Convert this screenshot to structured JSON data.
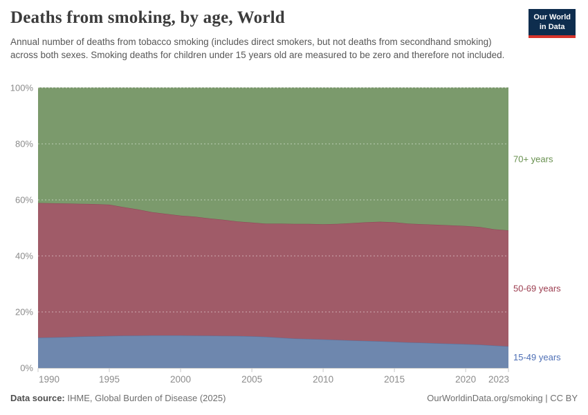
{
  "header": {
    "title": "Deaths from smoking, by age, World",
    "subtitle": "Annual number of deaths from tobacco smoking (includes direct smokers, but not deaths from secondhand smoking) across both sexes. Smoking deaths for children under 15 years old are measured to be zero and therefore not included.",
    "logo": {
      "line1": "Our World",
      "line2": "in Data",
      "bg": "#0e2d4e",
      "bar": "#d7342b"
    }
  },
  "footer": {
    "source_label": "Data source:",
    "source_text": " IHME, Global Burden of Disease (2025)",
    "credit": "OurWorldinData.org/smoking | CC BY"
  },
  "chart_data": {
    "type": "area",
    "stacked": true,
    "unit": "%",
    "title": "Deaths from smoking, by age, World",
    "x": [
      1990,
      1991,
      1992,
      1993,
      1994,
      1995,
      1996,
      1997,
      1998,
      1999,
      2000,
      2001,
      2002,
      2003,
      2004,
      2005,
      2006,
      2007,
      2008,
      2009,
      2010,
      2011,
      2012,
      2013,
      2014,
      2015,
      2016,
      2017,
      2018,
      2019,
      2020,
      2021,
      2022,
      2023
    ],
    "series": [
      {
        "name": "15-49 years",
        "fill": "#6e87ae",
        "stroke": "#54719f",
        "label_color": "#4e6fb5",
        "values": [
          10.8,
          10.9,
          11.0,
          11.2,
          11.3,
          11.4,
          11.5,
          11.55,
          11.6,
          11.6,
          11.6,
          11.55,
          11.5,
          11.45,
          11.4,
          11.3,
          11.1,
          10.8,
          10.5,
          10.35,
          10.2,
          10.0,
          9.8,
          9.65,
          9.5,
          9.3,
          9.1,
          9.0,
          8.8,
          8.65,
          8.5,
          8.3,
          8.0,
          7.7
        ]
      },
      {
        "name": "50-69 years",
        "fill": "#a05b68",
        "stroke": "#8d4456",
        "label_color": "#9c3e50",
        "values": [
          48.1,
          47.9,
          47.7,
          47.4,
          47.2,
          46.9,
          45.9,
          45.05,
          44.0,
          43.4,
          42.8,
          42.45,
          41.9,
          41.45,
          40.9,
          40.6,
          40.4,
          40.7,
          40.9,
          41.05,
          41.1,
          41.4,
          41.9,
          42.35,
          42.7,
          42.7,
          42.4,
          42.3,
          42.3,
          42.25,
          42.2,
          42.0,
          41.5,
          41.4
        ]
      },
      {
        "name": "70+ years",
        "fill": "#7b9a6c",
        "stroke": "#69885a",
        "label_color": "#68904f",
        "values": [
          41.1,
          41.2,
          41.3,
          41.4,
          41.5,
          41.7,
          42.6,
          43.4,
          44.4,
          45.0,
          45.6,
          46.0,
          46.6,
          47.1,
          47.7,
          48.1,
          48.5,
          48.5,
          48.6,
          48.6,
          48.7,
          48.6,
          48.3,
          48.0,
          47.8,
          48.0,
          48.5,
          48.7,
          48.9,
          49.1,
          49.3,
          49.7,
          50.5,
          50.9
        ]
      }
    ],
    "ylim": [
      0,
      100
    ],
    "yticks": [
      0,
      20,
      40,
      60,
      80,
      100
    ],
    "ytick_labels": [
      "0%",
      "20%",
      "40%",
      "60%",
      "80%",
      "100%"
    ],
    "xticks": [
      1990,
      1995,
      2000,
      2005,
      2010,
      2015,
      2020,
      2023
    ],
    "grid": "dashed-horizontal",
    "legend_position": "right-edge-labels"
  }
}
